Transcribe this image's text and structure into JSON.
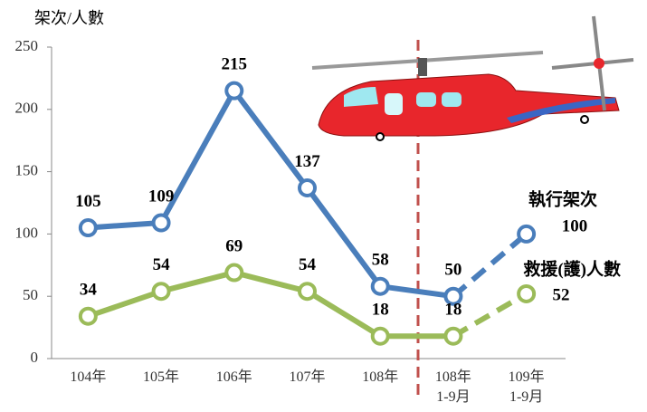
{
  "chart_data": {
    "type": "line",
    "y_label": "架次/人數",
    "categories": [
      "104年",
      "105年",
      "106年",
      "107年",
      "108年",
      "108年\n1-9月",
      "109年\n1-9月"
    ],
    "series": [
      {
        "name": "執行架次",
        "color": "#4a7ebb",
        "values": [
          105,
          109,
          215,
          137,
          58,
          50,
          100
        ]
      },
      {
        "name": "救援(護)人數",
        "color": "#9bbb59",
        "values": [
          34,
          54,
          69,
          54,
          18,
          18,
          52
        ]
      }
    ],
    "ylim": [
      0,
      250
    ],
    "yticks": [
      0,
      50,
      100,
      150,
      200,
      250
    ],
    "grid": false,
    "dashed_last_segment": true
  }
}
